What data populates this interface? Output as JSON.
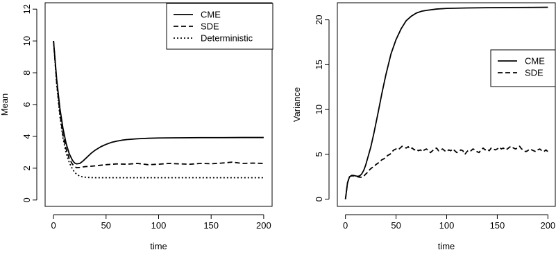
{
  "chart_data": [
    {
      "type": "line",
      "xlabel": "time",
      "ylabel": "Mean",
      "xlim": [
        -8,
        208
      ],
      "ylim": [
        -0.4,
        12.4
      ],
      "xticks": [
        0,
        50,
        100,
        150,
        200
      ],
      "yticks": [
        0,
        2,
        4,
        6,
        8,
        10,
        12
      ],
      "legend_position": "top-right",
      "series": [
        {
          "name": "CME",
          "line_style": "solid",
          "x": [
            0,
            3,
            6,
            9,
            12,
            15,
            18,
            20,
            22,
            25,
            28,
            32,
            36,
            40,
            45,
            50,
            55,
            60,
            65,
            70,
            80,
            90,
            100,
            120,
            140,
            160,
            180,
            200
          ],
          "y": [
            10.0,
            7.6,
            5.8,
            4.5,
            3.55,
            2.9,
            2.5,
            2.33,
            2.27,
            2.3,
            2.45,
            2.7,
            2.95,
            3.15,
            3.35,
            3.5,
            3.62,
            3.7,
            3.76,
            3.8,
            3.85,
            3.88,
            3.9,
            3.91,
            3.92,
            3.92,
            3.93,
            3.93
          ]
        },
        {
          "name": "SDE",
          "line_style": "dashed",
          "x": [
            0,
            3,
            6,
            9,
            12,
            15,
            18,
            20,
            22,
            25,
            30,
            35,
            40,
            50,
            60,
            70,
            80,
            90,
            100,
            110,
            120,
            130,
            140,
            150,
            160,
            170,
            180,
            190,
            200
          ],
          "y": [
            10.0,
            7.4,
            5.5,
            4.1,
            3.2,
            2.6,
            2.25,
            2.1,
            2.03,
            2.05,
            2.1,
            2.12,
            2.15,
            2.22,
            2.27,
            2.25,
            2.3,
            2.22,
            2.25,
            2.3,
            2.27,
            2.25,
            2.3,
            2.28,
            2.32,
            2.38,
            2.3,
            2.32,
            2.3
          ]
        },
        {
          "name": "Deterministic",
          "line_style": "dotted",
          "x": [
            0,
            3,
            6,
            9,
            12,
            15,
            18,
            20,
            22,
            25,
            28,
            32,
            36,
            40,
            50,
            60,
            80,
            100,
            150,
            200
          ],
          "y": [
            10.0,
            7.3,
            5.3,
            3.9,
            2.95,
            2.35,
            1.95,
            1.75,
            1.62,
            1.5,
            1.45,
            1.42,
            1.41,
            1.4,
            1.4,
            1.4,
            1.4,
            1.4,
            1.4,
            1.4
          ]
        }
      ]
    },
    {
      "type": "line",
      "xlabel": "time",
      "ylabel": "Variance",
      "xlim": [
        -8,
        208
      ],
      "ylim": [
        -0.8,
        21.9
      ],
      "xticks": [
        0,
        50,
        100,
        150,
        200
      ],
      "yticks": [
        0,
        5,
        10,
        15,
        20
      ],
      "legend_position": "right",
      "series": [
        {
          "name": "CME",
          "line_style": "solid",
          "x": [
            0,
            2,
            4,
            6,
            8,
            10,
            12,
            14,
            16,
            18,
            20,
            22,
            25,
            28,
            32,
            36,
            40,
            45,
            50,
            55,
            60,
            65,
            70,
            75,
            80,
            90,
            100,
            120,
            140,
            160,
            180,
            200
          ],
          "y": [
            0,
            1.8,
            2.5,
            2.65,
            2.65,
            2.6,
            2.55,
            2.6,
            2.8,
            3.2,
            3.8,
            4.6,
            5.8,
            7.3,
            9.5,
            11.8,
            13.9,
            16.2,
            17.8,
            19.0,
            19.9,
            20.4,
            20.75,
            20.95,
            21.05,
            21.2,
            21.27,
            21.32,
            21.35,
            21.37,
            21.38,
            21.4
          ]
        },
        {
          "name": "SDE",
          "line_style": "dashed",
          "x": [
            0,
            2,
            4,
            6,
            8,
            10,
            12,
            14,
            16,
            18,
            20,
            22,
            24,
            26,
            28,
            30,
            32,
            34,
            36,
            38,
            40,
            42,
            44,
            46,
            48,
            50,
            52,
            54,
            56,
            58,
            60,
            62,
            64,
            66,
            68,
            70,
            72,
            74,
            76,
            78,
            80,
            82,
            84,
            86,
            88,
            90,
            92,
            94,
            96,
            98,
            100,
            102,
            104,
            106,
            108,
            110,
            112,
            114,
            116,
            118,
            120,
            122,
            124,
            126,
            128,
            130,
            132,
            134,
            136,
            138,
            140,
            142,
            144,
            146,
            148,
            150,
            152,
            154,
            156,
            158,
            160,
            162,
            164,
            166,
            168,
            170,
            172,
            174,
            176,
            178,
            180,
            182,
            184,
            186,
            188,
            190,
            192,
            194,
            196,
            198,
            200
          ],
          "y": [
            0,
            1.8,
            2.5,
            2.6,
            2.6,
            2.55,
            2.5,
            2.45,
            2.45,
            2.55,
            2.8,
            3.0,
            3.3,
            3.5,
            3.6,
            3.85,
            4.0,
            4.2,
            4.4,
            4.5,
            4.7,
            4.9,
            5.0,
            5.3,
            5.5,
            5.6,
            5.5,
            5.7,
            5.9,
            5.8,
            5.7,
            5.85,
            5.6,
            5.7,
            5.5,
            5.6,
            5.4,
            5.5,
            5.3,
            5.5,
            5.6,
            5.4,
            5.2,
            5.4,
            5.6,
            5.7,
            5.4,
            5.5,
            5.6,
            5.4,
            5.3,
            5.5,
            5.4,
            5.6,
            5.4,
            5.2,
            5.3,
            5.5,
            5.4,
            5.0,
            5.3,
            5.5,
            5.4,
            5.6,
            5.5,
            5.3,
            5.2,
            5.5,
            5.7,
            5.5,
            5.6,
            5.4,
            5.7,
            5.6,
            5.5,
            5.6,
            5.8,
            5.6,
            5.7,
            5.5,
            5.6,
            5.8,
            5.9,
            5.7,
            5.6,
            5.7,
            5.9,
            5.6,
            5.5,
            5.3,
            5.4,
            5.6,
            5.5,
            5.4,
            5.3,
            5.5,
            5.6,
            5.4,
            5.3,
            5.5,
            5.3
          ]
        }
      ]
    }
  ]
}
